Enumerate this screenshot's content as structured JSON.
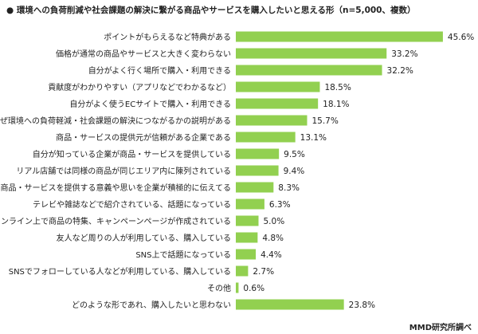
{
  "title": "● 環境への負荷削減や社会課題の解決に繋がる商品やサービスを購入したいと思える形（n=5,000、複数）",
  "source": "MMD研究所調べ",
  "colors": {
    "bar": "#92D050"
  },
  "chart_data": {
    "type": "bar",
    "orientation": "horizontal",
    "title": "● 環境への負荷削減や社会課題の解決に繋がる商品やサービスを購入したいと思える形（n=5,000、複数）",
    "unit": "%",
    "categories": [
      "ポイントがもらえるなど特典がある",
      "価格が通常の商品やサービスと大きく変わらない",
      "自分がよく行く場所で購入・利用できる",
      "貢献度がわかりやすい（アプリなどでわかるなど）",
      "自分がよく使うECサイトで購入・利用できる",
      "なぜ環境への負荷軽減・社会課題の解決につながるかの説明がある",
      "商品・サービスの提供元が信頼がある企業である",
      "自分が知っている企業が商品・サービスを提供している",
      "リアル店舗では同様の商品が同じエリア内に陳列されている",
      "その商品・サービスを提供する意義や思いを企業が積極的に伝えてる",
      "テレビや雑誌などで紹介されている、話題になっている",
      "オンライン上で商品の特集、キャンペーンページが作成されている",
      "友人など周りの人が利用している、購入している",
      "SNS上で話題になっている",
      "SNSでフォローしている人などが利用している、購入している",
      "その他",
      "どのような形であれ、購入したいと思わない"
    ],
    "values": [
      45.6,
      33.2,
      32.2,
      18.5,
      18.1,
      15.7,
      13.1,
      9.5,
      9.4,
      8.3,
      6.3,
      5.0,
      4.8,
      4.4,
      2.7,
      0.6,
      23.8
    ],
    "value_labels": [
      "45.6%",
      "33.2%",
      "32.2%",
      "18.5%",
      "18.1%",
      "15.7%",
      "13.1%",
      "9.5%",
      "9.4%",
      "8.3%",
      "6.3%",
      "5.0%",
      "4.8%",
      "4.4%",
      "2.7%",
      "0.6%",
      "23.8%"
    ],
    "grid": false,
    "legend": "none"
  }
}
